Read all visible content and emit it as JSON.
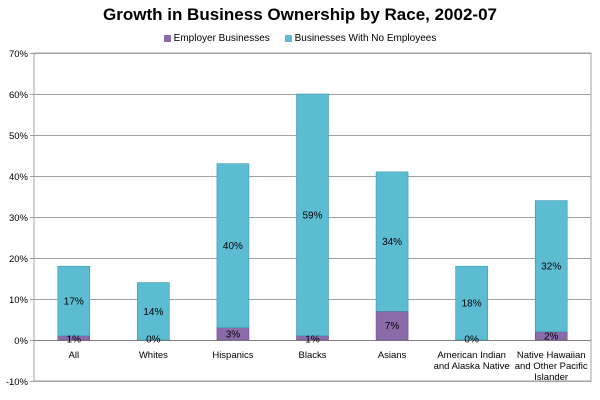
{
  "chart_data": {
    "type": "bar",
    "stacked": true,
    "title": "Growth in Business Ownership by Race, 2002-07",
    "xlabel": "",
    "ylabel": "",
    "ylim": [
      -10,
      70
    ],
    "yticks": [
      -10,
      0,
      10,
      20,
      30,
      40,
      50,
      60,
      70
    ],
    "ytick_labels": [
      "-10%",
      "0%",
      "10%",
      "20%",
      "30%",
      "40%",
      "50%",
      "60%",
      "70%"
    ],
    "grid": true,
    "legend_position": "top",
    "categories": [
      [
        "All"
      ],
      [
        "Whites"
      ],
      [
        "Hispanics"
      ],
      [
        "Blacks"
      ],
      [
        "Asians"
      ],
      [
        "American Indian",
        "and Alaska Native"
      ],
      [
        "Native Hawaiian",
        "and Other Pacific",
        "Islander"
      ]
    ],
    "series": [
      {
        "name": "Employer Businesses",
        "color": "#8c6bab",
        "values": [
          1,
          0,
          3,
          1,
          7,
          0,
          2
        ],
        "labels": [
          "1%",
          "0%",
          "3%",
          "1%",
          "7%",
          "0%",
          "2%"
        ]
      },
      {
        "name": "Businesses With No Employees",
        "color": "#5bbcd2",
        "values": [
          17,
          14,
          40,
          59,
          34,
          18,
          32
        ],
        "labels": [
          "17%",
          "14%",
          "40%",
          "59%",
          "34%",
          "18%",
          "32%"
        ]
      }
    ]
  }
}
